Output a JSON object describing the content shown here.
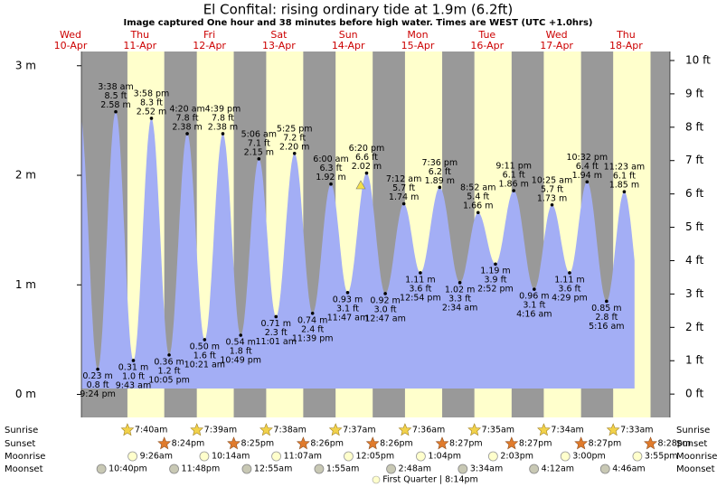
{
  "chart_data": {
    "type": "tide",
    "title": "El Confital: rising  ordinary tide at 1.9m (6.2ft)",
    "subtitle": "Image captured One hour and 38 minutes before high water. Times are WEST (UTC +1.0hrs)",
    "days": [
      {
        "weekday": "Wed",
        "date": "10-Apr"
      },
      {
        "weekday": "Thu",
        "date": "11-Apr"
      },
      {
        "weekday": "Fri",
        "date": "12-Apr"
      },
      {
        "weekday": "Sat",
        "date": "13-Apr"
      },
      {
        "weekday": "Sun",
        "date": "14-Apr"
      },
      {
        "weekday": "Mon",
        "date": "15-Apr"
      },
      {
        "weekday": "Tue",
        "date": "16-Apr"
      },
      {
        "weekday": "Wed",
        "date": "17-Apr"
      },
      {
        "weekday": "Thu",
        "date": "18-Apr"
      }
    ],
    "x": [
      "9:24 pm",
      "3:38 am",
      "9:43 am",
      "3:58 pm",
      "10:05 pm",
      "4:20 am",
      "10:21 am",
      "4:39 pm",
      "10:49 pm",
      "5:06 am",
      "11:01 am",
      "5:25 pm",
      "11:39 pm",
      "6:00 am",
      "11:47 am",
      "6:20 pm",
      "12:47 am",
      "7:12 am",
      "12:54 pm",
      "7:36 pm",
      "2:34 am",
      "8:52 am",
      "2:52 pm",
      "9:11 pm",
      "4:16 am",
      "10:25 am",
      "4:29 pm",
      "10:32 pm",
      "5:16 am",
      "11:23 am"
    ],
    "values": [
      0.23,
      2.58,
      0.31,
      2.52,
      0.36,
      2.38,
      0.5,
      2.38,
      0.54,
      2.15,
      0.71,
      2.2,
      0.74,
      1.92,
      0.93,
      2.02,
      0.92,
      1.74,
      1.11,
      1.89,
      1.02,
      1.66,
      1.19,
      1.86,
      0.96,
      1.73,
      1.11,
      1.94,
      0.85,
      1.85
    ],
    "value_labels": [
      "0.23 m",
      "2.58 m",
      "0.31 m",
      "2.52 m",
      "0.36 m",
      "2.38 m",
      "0.50 m",
      "2.38 m",
      "0.54 m",
      "2.15 m",
      "0.71 m",
      "2.20 m",
      "0.74 m",
      "1.92 m",
      "0.93 m",
      "2.02 m",
      "0.92 m",
      "1.74 m",
      "1.11 m",
      "1.89 m",
      "1.02 m",
      "1.66 m",
      "1.19 m",
      "1.86 m",
      "0.96 m",
      "1.73 m",
      "1.11 m",
      "1.94 m",
      "0.85 m",
      "1.85 m"
    ],
    "ft_labels": [
      "0.8 ft",
      "8.5 ft",
      "1.0 ft",
      "8.3 ft",
      "1.2 ft",
      "7.8 ft",
      "1.6 ft",
      "7.8 ft",
      "1.8 ft",
      "7.1 ft",
      "2.3 ft",
      "7.2 ft",
      "2.4 ft",
      "6.3 ft",
      "3.1 ft",
      "6.6 ft",
      "3.0 ft",
      "5.7 ft",
      "3.6 ft",
      "6.2 ft",
      "3.3 ft",
      "5.4 ft",
      "3.9 ft",
      "6.1 ft",
      "3.1 ft",
      "5.7 ft",
      "3.6 ft",
      "6.4 ft",
      "2.8 ft",
      "6.1 ft"
    ],
    "color": "#a3aef5",
    "ylim": [
      -0.21,
      3.13
    ],
    "yticks": [
      {
        "value": 0,
        "label": "0 m"
      },
      {
        "value": 1,
        "label": "1 m"
      },
      {
        "value": 2,
        "label": "2 m"
      },
      {
        "value": 3,
        "label": "3 m"
      }
    ],
    "y2lim": [
      -0.7,
      10.27
    ],
    "y2ticks": [
      {
        "value": 0,
        "label": "0 ft"
      },
      {
        "value": 1,
        "label": "1 ft"
      },
      {
        "value": 2,
        "label": "2 ft"
      },
      {
        "value": 3,
        "label": "3 ft"
      },
      {
        "value": 4,
        "label": "4 ft"
      },
      {
        "value": 5,
        "label": "5 ft"
      },
      {
        "value": 6,
        "label": "6 ft"
      },
      {
        "value": 7,
        "label": "7 ft"
      },
      {
        "value": 8,
        "label": "8 ft"
      },
      {
        "value": 9,
        "label": "9 ft"
      },
      {
        "value": 10,
        "label": "10 ft"
      }
    ],
    "rows": [
      {
        "label": "Sunrise",
        "icon": "sunrise",
        "times": [
          "7:40am",
          "7:39am",
          "7:38am",
          "7:37am",
          "7:36am",
          "7:35am",
          "7:34am",
          "7:33am"
        ]
      },
      {
        "label": "Sunset",
        "icon": "sunset",
        "times": [
          "8:24pm",
          "8:25pm",
          "8:26pm",
          "8:26pm",
          "8:27pm",
          "8:27pm",
          "8:27pm",
          "8:28pm"
        ]
      },
      {
        "label": "Moonrise",
        "icon": "moonrise",
        "times": [
          "9:26am",
          "10:14am",
          "11:07am",
          "12:05pm",
          "1:04pm",
          "2:03pm",
          "3:00pm",
          "3:55pm"
        ]
      },
      {
        "label": "Moonset",
        "icon": "moonset",
        "times": [
          "10:40pm",
          "11:48pm",
          "12:55am",
          "1:55am",
          "2:48am",
          "3:34am",
          "4:12am",
          "4:46am"
        ]
      }
    ],
    "moon_phase": "First Quarter | 8:14pm"
  }
}
